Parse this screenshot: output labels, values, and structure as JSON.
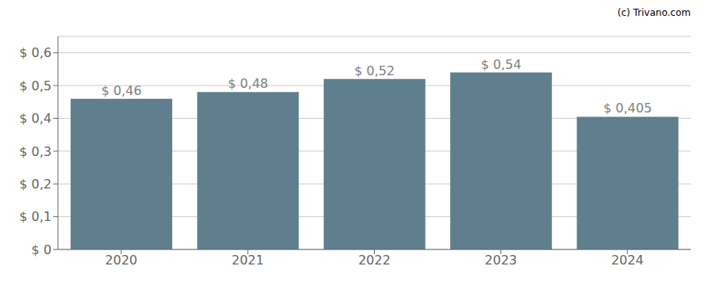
{
  "chart_data": {
    "type": "bar",
    "categories": [
      "2020",
      "2021",
      "2022",
      "2023",
      "2024"
    ],
    "values": [
      0.46,
      0.48,
      0.52,
      0.54,
      0.405
    ],
    "value_labels": [
      "$ 0,46",
      "$ 0,48",
      "$ 0,52",
      "$ 0,54",
      "$ 0,405"
    ],
    "data_labels": true,
    "color": "#5f7f8e",
    "ylim": [
      0,
      0.65
    ],
    "yticks": [
      {
        "value": 0.0,
        "label": "$ 0"
      },
      {
        "value": 0.1,
        "label": "$ 0,1"
      },
      {
        "value": 0.2,
        "label": "$ 0,2"
      },
      {
        "value": 0.3,
        "label": "$ 0,3"
      },
      {
        "value": 0.4,
        "label": "$ 0,4"
      },
      {
        "value": 0.5,
        "label": "$ 0,5"
      },
      {
        "value": 0.6,
        "label": "$ 0,6"
      }
    ],
    "grid": true,
    "annotations": [
      "(c) Trivano.com"
    ]
  }
}
